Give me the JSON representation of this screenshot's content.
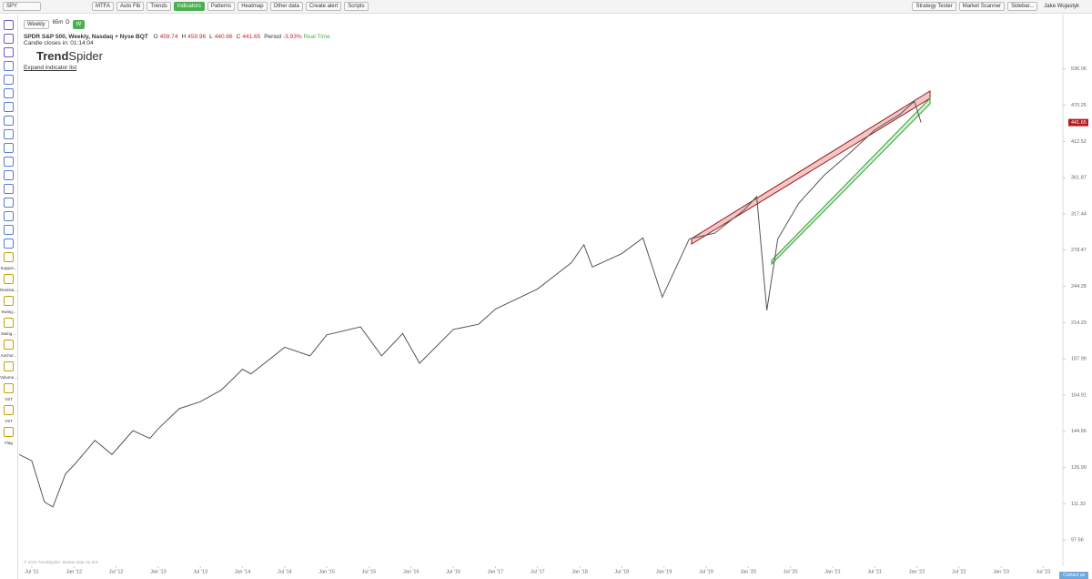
{
  "toolbar": {
    "symbol": "SPY",
    "interval": "Weekly",
    "interval_extra": [
      "65m",
      "D",
      "W"
    ],
    "buttons": [
      "MTFA",
      "Auto Fib",
      "Trends",
      "Indicators",
      "Patterns",
      "Heatmap",
      "Other data",
      "Create alert",
      "Scripts"
    ],
    "right_buttons": [
      "Strategy Tester",
      "Market Scanner",
      "Sidebar..."
    ],
    "user": "Jake Wujastyk"
  },
  "header": {
    "title": "SPDR S&P 500, Weekly, Nasdaq + Nyse BQT",
    "ohlc": [
      {
        "label": "O",
        "value": "459.74"
      },
      {
        "label": "H",
        "value": "459.96"
      },
      {
        "label": "L",
        "value": "440.66"
      },
      {
        "label": "C",
        "value": "441.65"
      },
      {
        "label": "Period",
        "value": "-3.93%"
      }
    ],
    "realtime": "Real Time",
    "countdown": "Candle closes in: 01:14:04",
    "logo_bold": "Trend",
    "logo_light": "Spider",
    "expand": "Expand indicator list"
  },
  "left_tools": [
    "Suppor...",
    "Resista...",
    "Swing...",
    "Swing ...",
    "Anchor...",
    "Volume...",
    "VST",
    "VST",
    "Flag"
  ],
  "footer": {
    "copyright": "© 2022 TrendSpider. Market data via IEX",
    "contact": "Contact us"
  },
  "chart_data": {
    "type": "line",
    "log_scale": true,
    "grid": false,
    "x": [
      2011.35,
      2011.5,
      2011.65,
      2011.75,
      2011.9,
      2012.0,
      2012.25,
      2012.45,
      2012.7,
      2012.9,
      2013.0,
      2013.25,
      2013.5,
      2013.75,
      2014.0,
      2014.1,
      2014.5,
      2014.8,
      2015.0,
      2015.4,
      2015.65,
      2015.9,
      2016.1,
      2016.5,
      2016.8,
      2017.0,
      2017.5,
      2017.9,
      2018.05,
      2018.15,
      2018.5,
      2018.75,
      2018.98,
      2019.3,
      2019.6,
      2019.95,
      2020.1,
      2020.22,
      2020.35,
      2020.6,
      2020.9,
      2021.2,
      2021.5,
      2021.8,
      2021.97,
      2022.05
    ],
    "series": [
      {
        "color": "#555555",
        "values": [
          133,
          130,
          112,
          110,
          124,
          128,
          140,
          133,
          145,
          141,
          146,
          157,
          161,
          168,
          181,
          178,
          196,
          190,
          205,
          211,
          190,
          206,
          185,
          209,
          213,
          225,
          242,
          266,
          284,
          262,
          275,
          291,
          235,
          290,
          296,
          322,
          338,
          224,
          290,
          330,
          365,
          395,
          430,
          455,
          477,
          441.65
        ]
      }
    ],
    "last_price": "441.65",
    "xlim": [
      2011.36,
      2023.7
    ],
    "xticks": [
      {
        "value": 2011.5,
        "label": "Jul '11"
      },
      {
        "value": 2012.0,
        "label": "Jan '12"
      },
      {
        "value": 2012.5,
        "label": "Jul '12"
      },
      {
        "value": 2013.0,
        "label": "Jan '13"
      },
      {
        "value": 2013.5,
        "label": "Jul '13"
      },
      {
        "value": 2014.0,
        "label": "Jan '14"
      },
      {
        "value": 2014.5,
        "label": "Jul '14"
      },
      {
        "value": 2015.0,
        "label": "Jan '15"
      },
      {
        "value": 2015.5,
        "label": "Jul '15"
      },
      {
        "value": 2016.0,
        "label": "Jan '16"
      },
      {
        "value": 2016.5,
        "label": "Jul '16"
      },
      {
        "value": 2017.0,
        "label": "Jan '17"
      },
      {
        "value": 2017.5,
        "label": "Jul '17"
      },
      {
        "value": 2018.0,
        "label": "Jan '18"
      },
      {
        "value": 2018.5,
        "label": "Jul '18"
      },
      {
        "value": 2019.0,
        "label": "Jan '19"
      },
      {
        "value": 2019.5,
        "label": "Jul '19"
      },
      {
        "value": 2020.0,
        "label": "Jan '20"
      },
      {
        "value": 2020.5,
        "label": "Jul '20"
      },
      {
        "value": 2021.0,
        "label": "Jan '21"
      },
      {
        "value": 2021.5,
        "label": "Jul '21"
      },
      {
        "value": 2022.0,
        "label": "Jan '22"
      },
      {
        "value": 2022.5,
        "label": "Jul '22"
      },
      {
        "value": 2023.0,
        "label": "Jan '23"
      },
      {
        "value": 2023.5,
        "label": "Jul '23"
      }
    ],
    "ylim": [
      88.8,
      648.3
    ],
    "yticks": [
      536.06,
      470.25,
      412.52,
      361.87,
      317.44,
      278.47,
      244.28,
      214.29,
      187.99,
      164.91,
      144.66,
      {
        "value": 126.9,
        "label": "126.90"
      },
      111.32,
      97.66
    ]
  }
}
